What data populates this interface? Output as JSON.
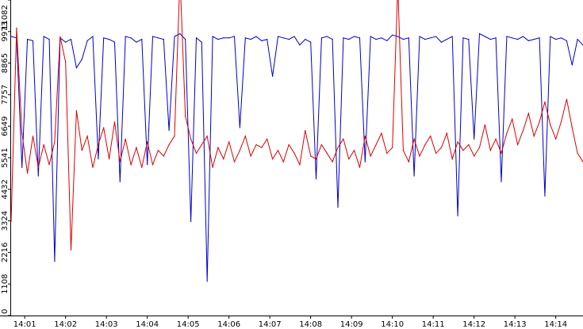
{
  "chart_data": {
    "type": "line",
    "title": "",
    "xlabel": "",
    "ylabel": "",
    "grid": false,
    "legend": "none",
    "x_start": "14:00:40",
    "x_end": "14:14:40",
    "xlim": [
      "14:00:40",
      "14:14:40"
    ],
    "ylim": [
      0,
      11082
    ],
    "y_ticks": [
      0,
      1108,
      2216,
      3324,
      4432,
      5541,
      6649,
      7757,
      8865,
      9973,
      11082
    ],
    "x_ticks": [
      "14:01",
      "14:02",
      "14:03",
      "14:04",
      "14:05",
      "14:06",
      "14:07",
      "14:08",
      "14:09",
      "14:10",
      "14:11",
      "14:12",
      "14:13",
      "14:14"
    ],
    "series": [
      {
        "color": "#0000cc",
        "x": [
          "14:00:40",
          "14:00:48",
          "14:00:56",
          "14:01:04",
          "14:01:12",
          "14:01:20",
          "14:01:28",
          "14:01:36",
          "14:01:44",
          "14:01:52",
          "14:02:00",
          "14:02:08",
          "14:02:16",
          "14:02:24",
          "14:02:32",
          "14:02:40",
          "14:02:48",
          "14:02:56",
          "14:03:04",
          "14:03:12",
          "14:03:20",
          "14:03:28",
          "14:03:36",
          "14:03:44",
          "14:03:52",
          "14:04:00",
          "14:04:08",
          "14:04:16",
          "14:04:24",
          "14:04:32",
          "14:04:40",
          "14:04:48",
          "14:04:56",
          "14:05:04",
          "14:05:12",
          "14:05:20",
          "14:05:28",
          "14:05:36",
          "14:05:44",
          "14:05:52",
          "14:06:00",
          "14:06:08",
          "14:06:16",
          "14:06:24",
          "14:06:32",
          "14:06:40",
          "14:06:48",
          "14:06:56",
          "14:07:04",
          "14:07:12",
          "14:07:20",
          "14:07:28",
          "14:07:36",
          "14:07:44",
          "14:07:52",
          "14:08:00",
          "14:08:08",
          "14:08:16",
          "14:08:24",
          "14:08:32",
          "14:08:40",
          "14:08:48",
          "14:08:56",
          "14:09:04",
          "14:09:12",
          "14:09:20",
          "14:09:28",
          "14:09:36",
          "14:09:44",
          "14:09:52",
          "14:10:00",
          "14:10:08",
          "14:10:16",
          "14:10:24",
          "14:10:32",
          "14:10:40",
          "14:10:48",
          "14:10:56",
          "14:11:04",
          "14:11:12",
          "14:11:20",
          "14:11:28",
          "14:11:36",
          "14:11:44",
          "14:11:52",
          "14:12:00",
          "14:12:08",
          "14:12:16",
          "14:12:24",
          "14:12:32",
          "14:12:40",
          "14:12:48",
          "14:12:56",
          "14:13:04",
          "14:13:12",
          "14:13:20",
          "14:13:28",
          "14:13:36",
          "14:13:44",
          "14:13:52",
          "14:14:00",
          "14:14:08",
          "14:14:16",
          "14:14:24",
          "14:14:32",
          "14:14:40"
        ],
        "values": [
          9800,
          9750,
          5200,
          9700,
          9650,
          4900,
          9800,
          9700,
          1900,
          9750,
          9600,
          9700,
          8700,
          9000,
          9650,
          9800,
          5500,
          9750,
          9700,
          9600,
          4700,
          9800,
          9750,
          9600,
          9700,
          5300,
          9800,
          9750,
          9700,
          6500,
          9800,
          9900,
          9700,
          3300,
          9750,
          9600,
          1200,
          9800,
          9700,
          9750,
          9750,
          9800,
          6600,
          9750,
          9700,
          9800,
          9650,
          9700,
          8400,
          9800,
          9750,
          9700,
          9800,
          9500,
          9700,
          9600,
          4800,
          9750,
          9800,
          9700,
          3800,
          9750,
          9700,
          9800,
          9750,
          5400,
          9800,
          9700,
          9750,
          9650,
          9850,
          9800,
          9700,
          9750,
          4900,
          9800,
          9700,
          9750,
          9800,
          9600,
          9700,
          9800,
          3500,
          9750,
          9700,
          6200,
          9900,
          9800,
          9700,
          9750,
          4700,
          9800,
          9750,
          9700,
          9800,
          9650,
          9700,
          9750,
          4200,
          9800,
          9700,
          9750,
          9650,
          8800,
          9700,
          9500
        ]
      },
      {
        "color": "#dd0000",
        "x": [
          "14:00:40",
          "14:00:48",
          "14:00:56",
          "14:01:04",
          "14:01:12",
          "14:01:20",
          "14:01:28",
          "14:01:36",
          "14:01:44",
          "14:01:52",
          "14:02:00",
          "14:02:08",
          "14:02:16",
          "14:02:24",
          "14:02:32",
          "14:02:40",
          "14:02:48",
          "14:02:56",
          "14:03:04",
          "14:03:12",
          "14:03:20",
          "14:03:28",
          "14:03:36",
          "14:03:44",
          "14:03:52",
          "14:04:00",
          "14:04:08",
          "14:04:16",
          "14:04:24",
          "14:04:32",
          "14:04:40",
          "14:04:48",
          "14:04:56",
          "14:05:04",
          "14:05:12",
          "14:05:20",
          "14:05:28",
          "14:05:36",
          "14:05:44",
          "14:05:52",
          "14:06:00",
          "14:06:08",
          "14:06:16",
          "14:06:24",
          "14:06:32",
          "14:06:40",
          "14:06:48",
          "14:06:56",
          "14:07:04",
          "14:07:12",
          "14:07:20",
          "14:07:28",
          "14:07:36",
          "14:07:44",
          "14:07:52",
          "14:08:00",
          "14:08:08",
          "14:08:16",
          "14:08:24",
          "14:08:32",
          "14:08:40",
          "14:08:48",
          "14:08:56",
          "14:09:04",
          "14:09:12",
          "14:09:20",
          "14:09:28",
          "14:09:36",
          "14:09:44",
          "14:09:52",
          "14:10:00",
          "14:10:08",
          "14:10:16",
          "14:10:24",
          "14:10:32",
          "14:10:40",
          "14:10:48",
          "14:10:56",
          "14:11:04",
          "14:11:12",
          "14:11:20",
          "14:11:28",
          "14:11:36",
          "14:11:44",
          "14:11:52",
          "14:12:00",
          "14:12:08",
          "14:12:16",
          "14:12:24",
          "14:12:32",
          "14:12:40",
          "14:12:48",
          "14:12:56",
          "14:13:04",
          "14:13:12",
          "14:13:20",
          "14:13:28",
          "14:13:36",
          "14:13:44",
          "14:13:52",
          "14:14:00",
          "14:14:08",
          "14:14:16",
          "14:14:24",
          "14:14:32",
          "14:14:40"
        ],
        "values": [
          3300,
          10100,
          6400,
          5000,
          6300,
          5200,
          6000,
          5300,
          6100,
          9800,
          8900,
          2300,
          7200,
          5800,
          6300,
          5200,
          6000,
          6600,
          5500,
          6800,
          5400,
          6200,
          5300,
          5900,
          5200,
          6100,
          5300,
          5800,
          5600,
          6000,
          6300,
          11900,
          7000,
          6200,
          5700,
          6000,
          6300,
          5200,
          5900,
          5500,
          6100,
          5400,
          5800,
          6300,
          5600,
          6000,
          5900,
          6200,
          5500,
          5800,
          5400,
          6000,
          5700,
          5300,
          6500,
          5600,
          5500,
          6000,
          5700,
          5400,
          5900,
          6200,
          5500,
          5800,
          5200,
          6300,
          5600,
          6000,
          6400,
          5700,
          5900,
          11600,
          5800,
          5400,
          6200,
          5600,
          6000,
          6300,
          5700,
          5900,
          6400,
          5500,
          6100,
          5800,
          6000,
          5600,
          5900,
          6700,
          5800,
          6200,
          5700,
          6400,
          6900,
          6000,
          6500,
          7100,
          6300,
          6800,
          7500,
          6700,
          6200,
          6800,
          7600,
          6600,
          5700,
          5400
        ]
      }
    ]
  }
}
